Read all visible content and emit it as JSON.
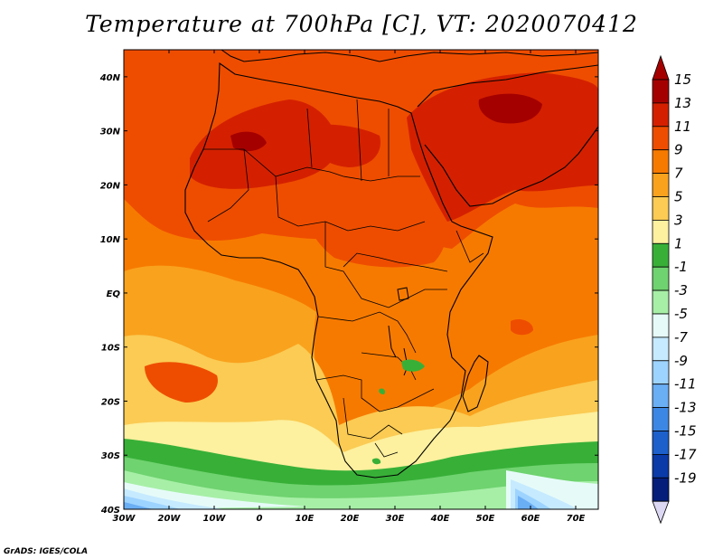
{
  "title": "Temperature at 700hPa [C], VT: 2020070412",
  "credit": "GrADS: IGES/COLA",
  "map": {
    "lon_range": [
      -30,
      75
    ],
    "lat_range": [
      -40,
      45
    ],
    "x_ticks": [
      "30W",
      "20W",
      "10W",
      "0",
      "10E",
      "20E",
      "30E",
      "40E",
      "50E",
      "60E",
      "70E"
    ],
    "y_ticks": [
      "40S",
      "30S",
      "20S",
      "10S",
      "EQ",
      "10N",
      "20N",
      "30N",
      "40N"
    ]
  },
  "colorbar": {
    "labels": [
      "15",
      "13",
      "11",
      "9",
      "7",
      "5",
      "3",
      "1",
      "-1",
      "-3",
      "-5",
      "-7",
      "-9",
      "-11",
      "-13",
      "-15",
      "-17",
      "-19"
    ],
    "colors": [
      "#a50000",
      "#d42000",
      "#ee4d00",
      "#f77a00",
      "#f9a21e",
      "#fbcb53",
      "#fdf09e",
      "#38b038",
      "#6fd36f",
      "#a7efa7",
      "#e6fbf8",
      "#c6eaff",
      "#9dd3ff",
      "#6aaef4",
      "#3d87e4",
      "#1d60cc",
      "#0a3aa8",
      "#041e7a"
    ],
    "top_arrow_color": "#a50000",
    "bottom_arrow_color": "#dcd8f4"
  }
}
